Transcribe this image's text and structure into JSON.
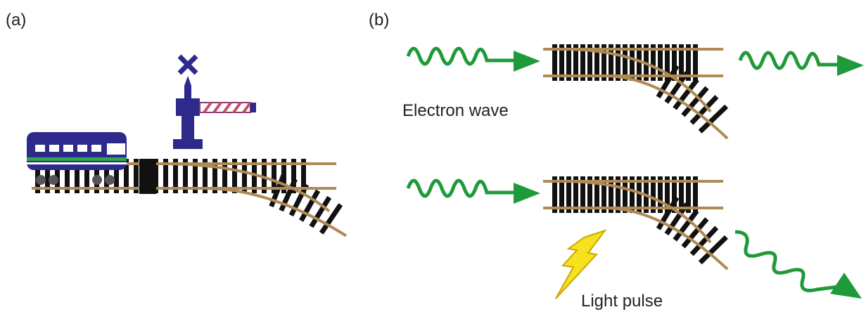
{
  "panel_a": {
    "label": "(a)"
  },
  "panel_b": {
    "label": "(b)",
    "electron_label": "Electron wave",
    "light_label": "Light pulse"
  }
}
